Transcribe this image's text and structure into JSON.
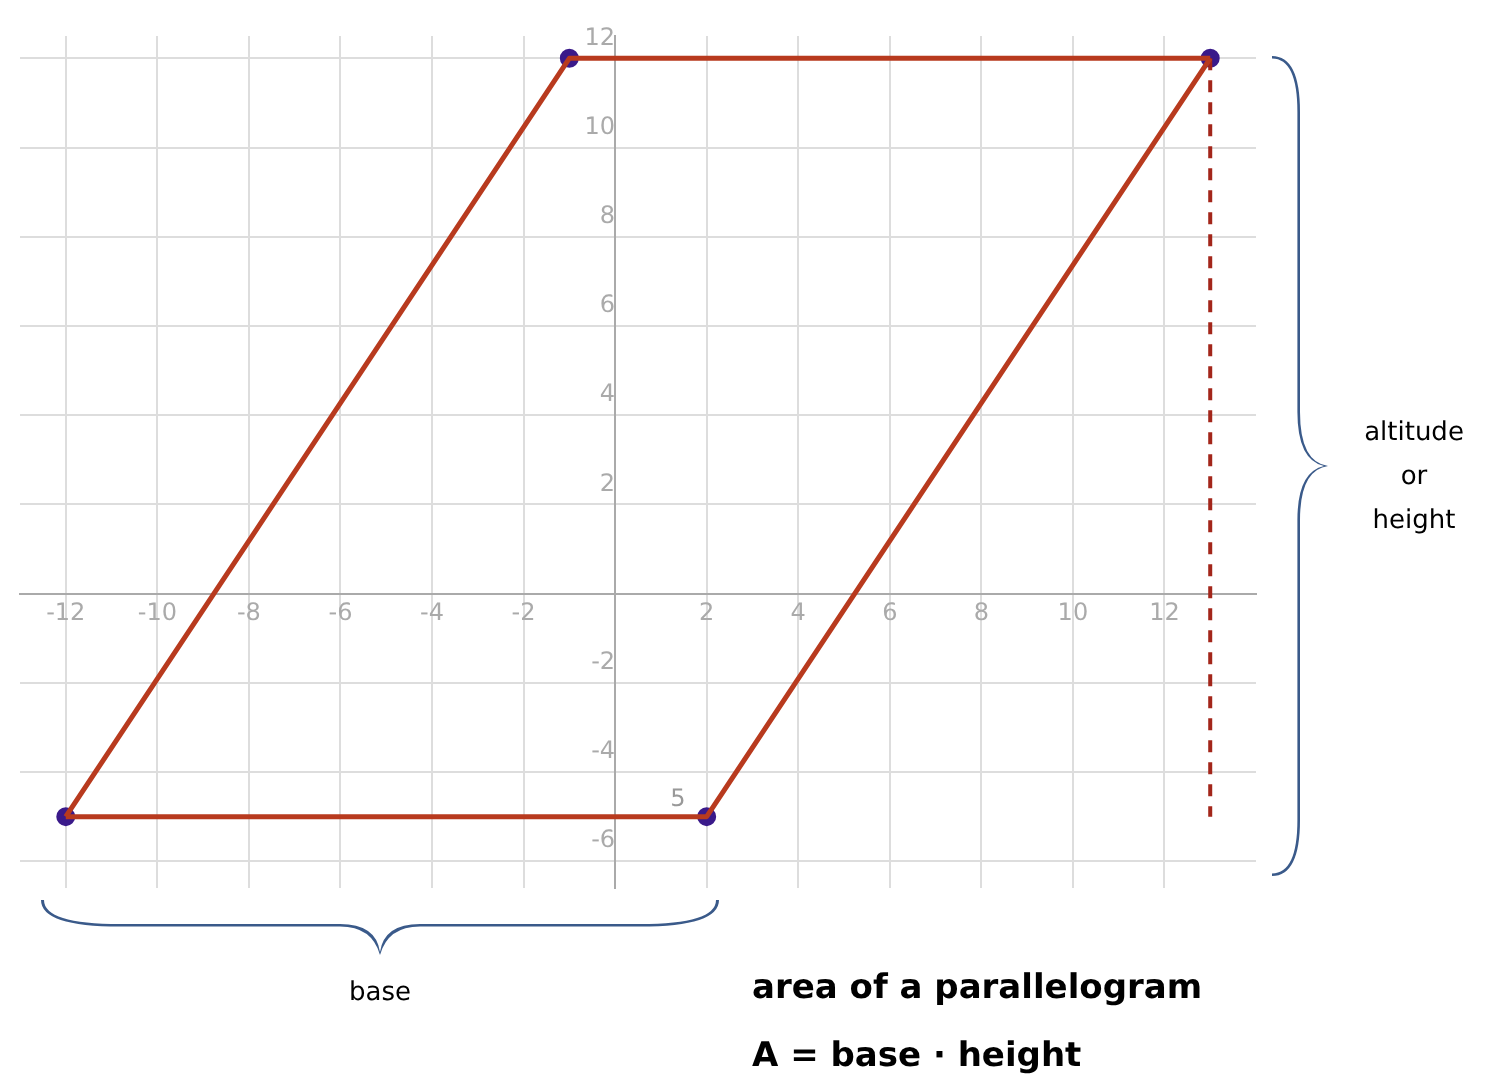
{
  "chart_data": {
    "type": "line",
    "title": "area of a parallelogram",
    "subtitle": "A = base · height",
    "xlim": [
      -13,
      14
    ],
    "ylim": [
      -6.6,
      12.5
    ],
    "xticks": [
      -12,
      -10,
      -8,
      -6,
      -4,
      -2,
      2,
      4,
      6,
      8,
      10,
      12
    ],
    "yticks": [
      -6,
      -4,
      -2,
      2,
      4,
      6,
      8,
      10,
      12
    ],
    "grid": true,
    "legend": false,
    "series": [
      {
        "x": [
          -12,
          2,
          13
        ],
        "values": [
          -5,
          -5,
          12
        ],
        "color": "#b83a1e",
        "marker": "none",
        "line_style": "solid"
      },
      {
        "x": [
          -12,
          -1,
          13
        ],
        "values": [
          -5,
          12,
          12
        ],
        "color": "#b83a1e",
        "marker": "none",
        "line_style": "solid"
      },
      {
        "x": [
          13,
          13
        ],
        "values": [
          12,
          -5
        ],
        "color": "#a3261a",
        "marker": "none",
        "line_style": "dashed"
      },
      {
        "type": "scatter",
        "x": [
          -12,
          2,
          13,
          -1
        ],
        "values": [
          -5,
          -5,
          12,
          12
        ],
        "color": "#3a1a8a",
        "marker": "circle"
      }
    ],
    "annotations": [
      "base",
      "altitude\nor\nheight",
      "5"
    ]
  }
}
